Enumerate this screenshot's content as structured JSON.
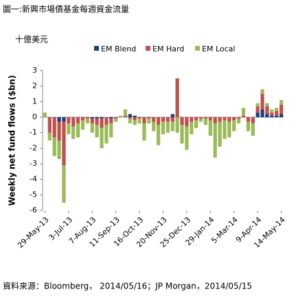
{
  "chart_data": {
    "type": "bar",
    "stacked": true,
    "title": "圖一:新興市場債基金每週資金流量",
    "unit_label": "十億美元",
    "y_label": "Weekly net fund flows ($bn)",
    "source": "資料來源：Bloomberg， 2014/05/16；JP Morgan，2014/05/15",
    "categories": [
      "29-May-13",
      null,
      null,
      null,
      null,
      "3-Jul-13",
      null,
      null,
      null,
      null,
      "7-Aug-13",
      null,
      null,
      null,
      null,
      "11-Sep-13",
      null,
      null,
      null,
      null,
      "16-Oct-13",
      null,
      null,
      null,
      null,
      "20-Nov-13",
      null,
      null,
      null,
      null,
      "25-Dec-13",
      null,
      null,
      null,
      null,
      "29-Jan-14",
      null,
      null,
      null,
      null,
      "5-Mar-14",
      null,
      null,
      null,
      null,
      "9-Apr-14",
      null,
      null,
      null,
      null,
      "14-May-14"
    ],
    "series": [
      {
        "name": "EM Blend",
        "color": "#1f3e7a",
        "values": [
          0,
          0,
          0,
          -0.3,
          -0.3,
          0,
          0,
          0,
          0,
          0,
          -0.1,
          -0.1,
          -0.1,
          0,
          -0.1,
          0,
          0,
          0,
          0.2,
          0.1,
          0,
          0,
          0,
          0,
          0,
          0,
          0,
          0.2,
          0,
          0,
          0,
          0,
          0,
          0,
          0,
          0,
          0,
          0,
          0,
          0,
          0,
          0,
          0,
          0,
          0,
          0.3,
          0.5,
          0.2,
          0.1,
          0.1,
          0.2
        ]
      },
      {
        "name": "EM Hard",
        "color": "#c0504d",
        "values": [
          0,
          -1.0,
          -1.3,
          -1.2,
          -2.8,
          -0.4,
          -0.6,
          -0.4,
          -0.2,
          -0.1,
          -0.3,
          -0.4,
          -0.6,
          -0.5,
          -0.3,
          -0.1,
          0,
          0.1,
          -0.1,
          -0.2,
          -0.1,
          -0.4,
          -0.1,
          -0.3,
          -0.5,
          -0.3,
          -0.3,
          -0.3,
          2.5,
          -0.5,
          -0.6,
          -0.3,
          -0.2,
          -0.1,
          -0.1,
          -0.2,
          -0.4,
          -0.3,
          -0.2,
          -0.3,
          -0.2,
          -0.1,
          0.1,
          -0.3,
          -0.4,
          0.4,
          1.0,
          0.5,
          0.2,
          0.3,
          0.6
        ]
      },
      {
        "name": "EM Local",
        "color": "#9bbb59",
        "values": [
          0.3,
          -0.5,
          -1.2,
          -1.2,
          -2.4,
          -0.7,
          -0.8,
          -0.9,
          -0.6,
          -0.3,
          -0.6,
          -0.8,
          -1.3,
          -1.2,
          -0.9,
          -0.2,
          0.1,
          0.4,
          -0.3,
          -0.3,
          -0.3,
          -1.1,
          -0.3,
          -0.6,
          -1.3,
          -0.8,
          -0.7,
          -0.6,
          -1.0,
          -1.2,
          -1.5,
          -0.8,
          -0.5,
          -0.2,
          -0.4,
          -1.0,
          -2.2,
          -1.6,
          -1.2,
          -1.0,
          -0.7,
          -0.3,
          0.5,
          -0.6,
          -0.8,
          0.2,
          0.3,
          0.2,
          0.2,
          0.2,
          0.3
        ]
      }
    ],
    "ylim": [
      -6,
      3
    ],
    "yticks": [
      -6,
      -5,
      -4,
      -3,
      -2,
      -1,
      0,
      1,
      2,
      3
    ]
  }
}
